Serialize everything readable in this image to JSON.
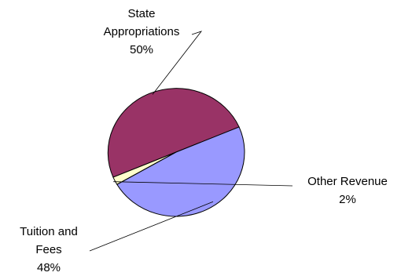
{
  "chart_data": {
    "type": "pie",
    "title": "",
    "slices": [
      {
        "label_lines": [
          "State",
          "Appropriations"
        ],
        "percent_label": "50%",
        "value": 50,
        "color": "#993366"
      },
      {
        "label_lines": [
          "Other Revenue"
        ],
        "percent_label": "2%",
        "value": 2,
        "color": "#FFFFCC"
      },
      {
        "label_lines": [
          "Tuition and",
          "Fees"
        ],
        "percent_label": "48%",
        "value": 48,
        "color": "#9999FF"
      }
    ]
  }
}
